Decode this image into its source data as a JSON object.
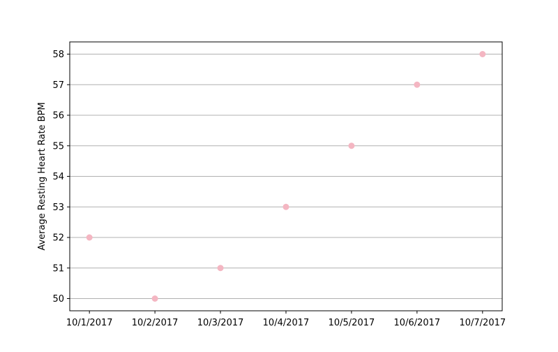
{
  "chart_data": {
    "type": "scatter",
    "title": "",
    "xlabel": "",
    "ylabel": "Average Resting Heart Rate BPM",
    "categories": [
      "10/1/2017",
      "10/2/2017",
      "10/3/2017",
      "10/4/2017",
      "10/5/2017",
      "10/6/2017",
      "10/7/2017"
    ],
    "series": [
      {
        "values": [
          52,
          50,
          51,
          53,
          55,
          57,
          58
        ],
        "color": "#f4b6c2"
      }
    ],
    "yticks": [
      50,
      51,
      52,
      53,
      54,
      55,
      56,
      57,
      58
    ],
    "ylim": [
      49.6,
      58.4
    ],
    "grid": {
      "y": true,
      "x": false
    },
    "legend": "none"
  }
}
